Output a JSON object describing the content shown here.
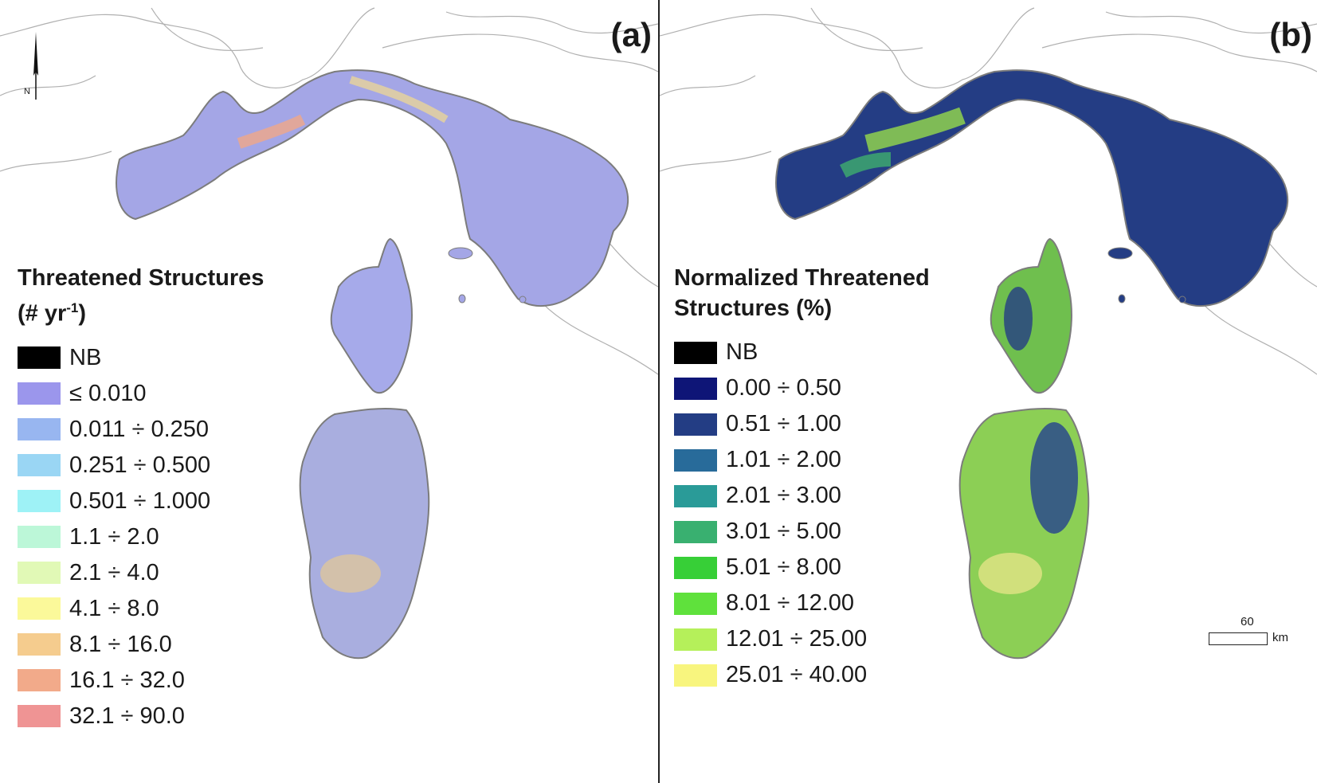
{
  "panels": {
    "a": {
      "label": "(a)",
      "legend_title": "Threatened Structures",
      "legend_unit_prefix": "(# yr",
      "legend_unit_sup": "-1",
      "legend_unit_suffix": ")",
      "legend": [
        {
          "label": "NB",
          "color": "#000000"
        },
        {
          "label": "≤ 0.010",
          "color": "#9b96ec"
        },
        {
          "label": "0.011 ÷ 0.250",
          "color": "#98b6f0"
        },
        {
          "label": "0.251 ÷ 0.500",
          "color": "#9ad6f4"
        },
        {
          "label": "0.501 ÷ 1.000",
          "color": "#9ef2f6"
        },
        {
          "label": "1.1 ÷ 2.0",
          "color": "#bcf7d8"
        },
        {
          "label": "2.1 ÷ 4.0",
          "color": "#e1f9b6"
        },
        {
          "label": "4.1 ÷ 8.0",
          "color": "#fbf99a"
        },
        {
          "label": "8.1 ÷ 16.0",
          "color": "#f5cc8e"
        },
        {
          "label": "16.1 ÷ 32.0",
          "color": "#f2aa8a"
        },
        {
          "label": "32.1 ÷ 90.0",
          "color": "#ef9494"
        }
      ]
    },
    "b": {
      "label": "(b)",
      "legend_title": "Normalized Threatened\nStructures (%)",
      "legend": [
        {
          "label": "NB",
          "color": "#000000"
        },
        {
          "label": "0.00 ÷ 0.50",
          "color": "#0e1577"
        },
        {
          "label": "0.51 ÷ 1.00",
          "color": "#233d84"
        },
        {
          "label": "1.01 ÷ 2.00",
          "color": "#286b9a"
        },
        {
          "label": "2.01 ÷ 3.00",
          "color": "#2a9b98"
        },
        {
          "label": "3.01 ÷ 5.00",
          "color": "#39b070"
        },
        {
          "label": "5.01 ÷ 8.00",
          "color": "#37cf37"
        },
        {
          "label": "8.01 ÷ 12.00",
          "color": "#5fe13c"
        },
        {
          "label": "12.01 ÷ 25.00",
          "color": "#b5f05a"
        },
        {
          "label": "25.01 ÷ 40.00",
          "color": "#f8f57e"
        }
      ]
    }
  },
  "north_arrow": {
    "label": "N"
  },
  "scale_bar": {
    "value": "60",
    "unit": "km"
  }
}
